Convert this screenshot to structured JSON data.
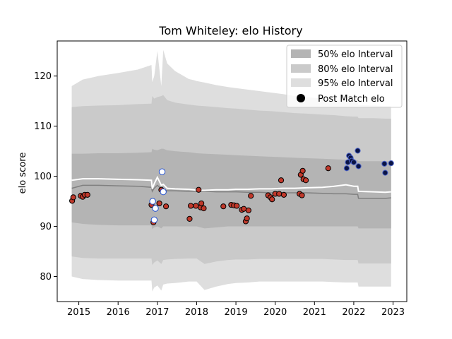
{
  "chart_data": {
    "type": "line",
    "title": "Tom Whiteley: elo History",
    "xlabel": "",
    "ylabel": "elo score",
    "xlim": [
      2014.45,
      2023.35
    ],
    "ylim": [
      75,
      127
    ],
    "x_ticks": [
      2015,
      2016,
      2017,
      2018,
      2019,
      2020,
      2021,
      2022,
      2023
    ],
    "y_ticks": [
      80,
      90,
      100,
      110,
      120
    ],
    "legend_position": "top-right",
    "legend": {
      "i50": "50% elo Interval",
      "i80": "80% elo Interval",
      "i95": "95% elo Interval",
      "post": "Post Match elo"
    },
    "colors": {
      "band95": "#dedede",
      "band80": "#cacaca",
      "band50": "#b4b4b4",
      "median_line": "#808080",
      "mean_line": "#ffffff",
      "marker_win": "#0a1445",
      "marker_loss": "#c0392b",
      "marker_edge_blue": "#2250d0"
    },
    "bands": {
      "x": [
        2014.82,
        2015.1,
        2015.5,
        2016.0,
        2016.5,
        2016.85,
        2016.87,
        2016.92,
        2017.0,
        2017.1,
        2017.15,
        2017.25,
        2017.45,
        2017.8,
        2017.92,
        2018.0,
        2018.2,
        2018.5,
        2018.8,
        2019.0,
        2019.3,
        2019.6,
        2019.9,
        2020.2,
        2020.5,
        2020.8,
        2021.2,
        2021.5,
        2021.8,
        2022.0,
        2022.1,
        2022.12,
        2022.5,
        2022.8,
        2022.95
      ],
      "lower95": [
        80.0,
        79.5,
        79.3,
        79.2,
        79.2,
        79.2,
        77.0,
        77.8,
        78.2,
        77.2,
        78.4,
        78.6,
        78.7,
        79.0,
        79.0,
        79.0,
        77.3,
        78.0,
        78.5,
        78.7,
        78.8,
        79.0,
        79.0,
        79.0,
        79.0,
        79.0,
        79.0,
        78.9,
        78.8,
        78.8,
        78.8,
        78.0,
        78.0,
        78.0,
        78.0
      ],
      "lower80": [
        84.0,
        83.7,
        83.6,
        83.6,
        83.6,
        83.6,
        82.3,
        82.8,
        83.2,
        82.5,
        83.3,
        83.4,
        83.5,
        83.6,
        83.6,
        83.6,
        82.5,
        83.0,
        83.3,
        83.4,
        83.4,
        83.5,
        83.5,
        83.5,
        83.5,
        83.5,
        83.5,
        83.4,
        83.3,
        83.3,
        83.3,
        82.6,
        82.6,
        82.6,
        82.6
      ],
      "lower50": [
        90.8,
        90.5,
        90.3,
        90.2,
        90.2,
        90.2,
        89.5,
        89.8,
        90.0,
        89.6,
        90.0,
        90.0,
        90.0,
        90.0,
        90.0,
        90.0,
        89.6,
        89.8,
        90.0,
        90.0,
        90.0,
        90.0,
        90.0,
        90.0,
        90.0,
        90.0,
        90.0,
        90.0,
        90.0,
        90.0,
        90.0,
        89.6,
        89.6,
        89.6,
        89.6
      ],
      "median": [
        97.6,
        98.2,
        98.2,
        98.1,
        98.0,
        97.8,
        97.0,
        97.6,
        98.2,
        97.5,
        97.4,
        97.1,
        97.1,
        97.0,
        97.0,
        97.0,
        97.0,
        96.9,
        96.9,
        96.9,
        96.8,
        96.8,
        96.7,
        96.7,
        96.7,
        96.7,
        96.6,
        96.5,
        96.5,
        96.4,
        96.4,
        95.6,
        95.6,
        95.6,
        95.7
      ],
      "mean": [
        99.2,
        99.5,
        99.5,
        99.4,
        99.3,
        99.2,
        97.5,
        98.5,
        99.8,
        98.2,
        98.4,
        97.6,
        97.5,
        97.4,
        97.3,
        97.2,
        97.2,
        97.3,
        97.3,
        97.4,
        97.4,
        97.5,
        97.5,
        97.6,
        97.6,
        97.7,
        97.8,
        98.0,
        98.3,
        98.0,
        98.0,
        97.0,
        96.9,
        96.8,
        96.9
      ],
      "upper50": [
        104.5,
        104.5,
        104.6,
        104.6,
        104.7,
        104.8,
        105.5,
        105.3,
        105.2,
        105.5,
        105.5,
        105.2,
        105.0,
        104.8,
        104.7,
        104.6,
        104.5,
        104.4,
        104.3,
        104.2,
        104.1,
        104.0,
        103.9,
        103.8,
        103.7,
        103.6,
        103.5,
        103.4,
        103.3,
        103.2,
        103.2,
        103.0,
        103.0,
        103.0,
        103.0
      ],
      "upper80": [
        113.8,
        114.0,
        114.1,
        114.2,
        114.4,
        114.5,
        116.0,
        115.5,
        115.8,
        116.0,
        116.2,
        115.2,
        114.7,
        114.3,
        114.2,
        114.1,
        114.0,
        113.8,
        113.6,
        113.5,
        113.3,
        113.1,
        113.0,
        112.8,
        112.6,
        112.5,
        112.3,
        112.2,
        112.0,
        111.9,
        111.9,
        111.6,
        111.6,
        111.5,
        111.5
      ],
      "upper95": [
        118.0,
        119.3,
        120.0,
        120.6,
        121.3,
        122.2,
        118.8,
        120.0,
        125.0,
        118.0,
        125.2,
        122.5,
        121.0,
        119.4,
        119.2,
        119.0,
        118.7,
        118.2,
        117.8,
        117.6,
        117.3,
        117.0,
        116.7,
        116.4,
        116.0,
        115.8,
        115.5,
        115.2,
        115.0,
        114.7,
        114.7,
        114.2,
        114.1,
        114.0,
        114.0
      ]
    },
    "post_match": [
      {
        "x": 2014.83,
        "y": 95.1,
        "result": "loss"
      },
      {
        "x": 2014.86,
        "y": 95.8,
        "result": "loss"
      },
      {
        "x": 2015.05,
        "y": 96.1,
        "result": "loss"
      },
      {
        "x": 2015.1,
        "y": 95.9,
        "result": "loss"
      },
      {
        "x": 2015.15,
        "y": 96.3,
        "result": "loss"
      },
      {
        "x": 2015.22,
        "y": 96.3,
        "result": "loss"
      },
      {
        "x": 2016.85,
        "y": 94.3,
        "result": "loss"
      },
      {
        "x": 2016.88,
        "y": 95.0,
        "result": "win"
      },
      {
        "x": 2016.9,
        "y": 90.8,
        "result": "loss"
      },
      {
        "x": 2016.92,
        "y": 91.3,
        "result": "win"
      },
      {
        "x": 2016.95,
        "y": 93.6,
        "result": "win"
      },
      {
        "x": 2017.05,
        "y": 94.6,
        "result": "loss"
      },
      {
        "x": 2017.1,
        "y": 97.3,
        "result": "loss"
      },
      {
        "x": 2017.12,
        "y": 100.9,
        "result": "win"
      },
      {
        "x": 2017.15,
        "y": 96.9,
        "result": "win"
      },
      {
        "x": 2017.22,
        "y": 94.0,
        "result": "loss"
      },
      {
        "x": 2017.82,
        "y": 91.5,
        "result": "loss"
      },
      {
        "x": 2017.85,
        "y": 94.1,
        "result": "loss"
      },
      {
        "x": 2017.98,
        "y": 94.1,
        "result": "loss"
      },
      {
        "x": 2018.05,
        "y": 97.3,
        "result": "loss"
      },
      {
        "x": 2018.1,
        "y": 93.8,
        "result": "loss"
      },
      {
        "x": 2018.12,
        "y": 94.6,
        "result": "loss"
      },
      {
        "x": 2018.18,
        "y": 93.6,
        "result": "loss"
      },
      {
        "x": 2018.68,
        "y": 94.0,
        "result": "loss"
      },
      {
        "x": 2018.88,
        "y": 94.3,
        "result": "loss"
      },
      {
        "x": 2018.95,
        "y": 94.2,
        "result": "loss"
      },
      {
        "x": 2019.02,
        "y": 94.1,
        "result": "loss"
      },
      {
        "x": 2019.15,
        "y": 93.3,
        "result": "loss"
      },
      {
        "x": 2019.2,
        "y": 93.5,
        "result": "loss"
      },
      {
        "x": 2019.25,
        "y": 91.0,
        "result": "loss"
      },
      {
        "x": 2019.28,
        "y": 91.6,
        "result": "loss"
      },
      {
        "x": 2019.32,
        "y": 93.2,
        "result": "loss"
      },
      {
        "x": 2019.38,
        "y": 96.1,
        "result": "loss"
      },
      {
        "x": 2019.82,
        "y": 96.2,
        "result": "loss"
      },
      {
        "x": 2019.88,
        "y": 95.8,
        "result": "loss"
      },
      {
        "x": 2019.92,
        "y": 95.4,
        "result": "loss"
      },
      {
        "x": 2020.0,
        "y": 96.5,
        "result": "loss"
      },
      {
        "x": 2020.1,
        "y": 96.5,
        "result": "loss"
      },
      {
        "x": 2020.15,
        "y": 99.2,
        "result": "loss"
      },
      {
        "x": 2020.22,
        "y": 96.3,
        "result": "loss"
      },
      {
        "x": 2020.62,
        "y": 96.5,
        "result": "loss"
      },
      {
        "x": 2020.65,
        "y": 100.3,
        "result": "loss"
      },
      {
        "x": 2020.68,
        "y": 96.2,
        "result": "loss"
      },
      {
        "x": 2020.7,
        "y": 101.1,
        "result": "loss"
      },
      {
        "x": 2020.72,
        "y": 99.4,
        "result": "loss"
      },
      {
        "x": 2020.78,
        "y": 99.2,
        "result": "loss"
      },
      {
        "x": 2021.35,
        "y": 101.6,
        "result": "loss"
      },
      {
        "x": 2021.82,
        "y": 101.6,
        "result": "win"
      },
      {
        "x": 2021.85,
        "y": 102.8,
        "result": "win"
      },
      {
        "x": 2021.88,
        "y": 104.1,
        "result": "win"
      },
      {
        "x": 2021.92,
        "y": 103.7,
        "result": "win"
      },
      {
        "x": 2021.95,
        "y": 103.1,
        "result": "win"
      },
      {
        "x": 2022.0,
        "y": 102.8,
        "result": "win"
      },
      {
        "x": 2022.1,
        "y": 105.1,
        "result": "win"
      },
      {
        "x": 2022.12,
        "y": 102.0,
        "result": "win"
      },
      {
        "x": 2022.78,
        "y": 102.5,
        "result": "win"
      },
      {
        "x": 2022.8,
        "y": 100.7,
        "result": "win"
      },
      {
        "x": 2022.95,
        "y": 102.6,
        "result": "win"
      }
    ]
  }
}
